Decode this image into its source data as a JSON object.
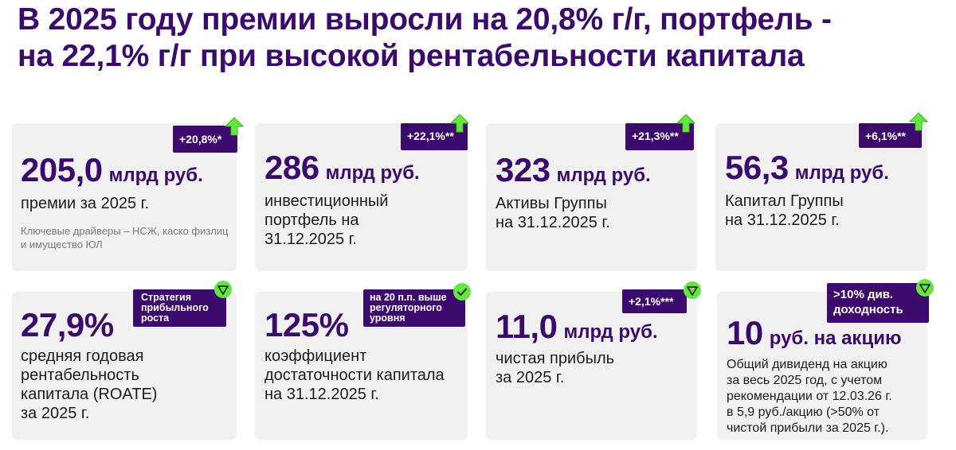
{
  "title": {
    "line1": "В 2025 году премии выросли на 20,8% г/г, портфель -",
    "line2": "на 22,1% г/г при высокой рентабельности капитала"
  },
  "colors": {
    "accent": "#3d0a6e",
    "green": "#64e640",
    "card_bg": "#f1f1f2"
  },
  "cards": [
    {
      "badge": "+20,8%*",
      "icon": "arrow-up-icon",
      "value": "205,0",
      "unit": "млрд руб.",
      "desc": [
        "премии за 2025 г."
      ],
      "note": [
        "Ключевые драйверы – НСЖ, каско физлиц",
        "и имущество ЮЛ"
      ]
    },
    {
      "badge": "+22,1%**",
      "icon": "arrow-up-icon",
      "value": "286",
      "unit": "млрд руб.",
      "desc": [
        "инвестиционный",
        "портфель на",
        "31.12.2025 г."
      ]
    },
    {
      "badge": "+21,3%**",
      "icon": "arrow-up-icon",
      "value": "323",
      "unit": "млрд руб.",
      "desc": [
        "Активы Группы",
        "на 31.12.2025 г."
      ]
    },
    {
      "badge": "+6,1%**",
      "icon": "arrow-up-icon",
      "value": "56,3",
      "unit": "млрд руб.",
      "desc": [
        "Капитал Группы",
        "на 31.12.2025 г."
      ]
    },
    {
      "badge": [
        "Стратегия",
        "прибыльного",
        "роста"
      ],
      "icon": "triangle-check-icon",
      "value": "27,9%",
      "unit": "",
      "desc": [
        "средняя годовая",
        "рентабельность",
        "капитала (ROATE)",
        "за 2025 г."
      ]
    },
    {
      "badge": [
        "на 20 п.п. выше",
        "регуляторного",
        "уровня"
      ],
      "icon": "circle-check-icon",
      "value": "125%",
      "unit": "",
      "desc": [
        "коэффициент",
        "достаточности капитала",
        "на 31.12.2025 г."
      ]
    },
    {
      "badge": "+2,1%***",
      "icon": "triangle-check-icon",
      "value": "11,0",
      "unit": "млрд руб.",
      "desc": [
        "чистая прибыль",
        "за 2025 г."
      ]
    },
    {
      "badge": [
        ">10% див.",
        "доходность"
      ],
      "icon": "triangle-check-icon",
      "value": "10",
      "unit": "руб. на акцию",
      "desc": [
        "Общий дивиденд на акцию",
        "за весь 2025 год, с учетом",
        "рекомендации от 12.03.26 г.",
        "в 5,9 руб./акцию (>50% от",
        "чистой прибыли за 2025 г.)."
      ]
    }
  ]
}
